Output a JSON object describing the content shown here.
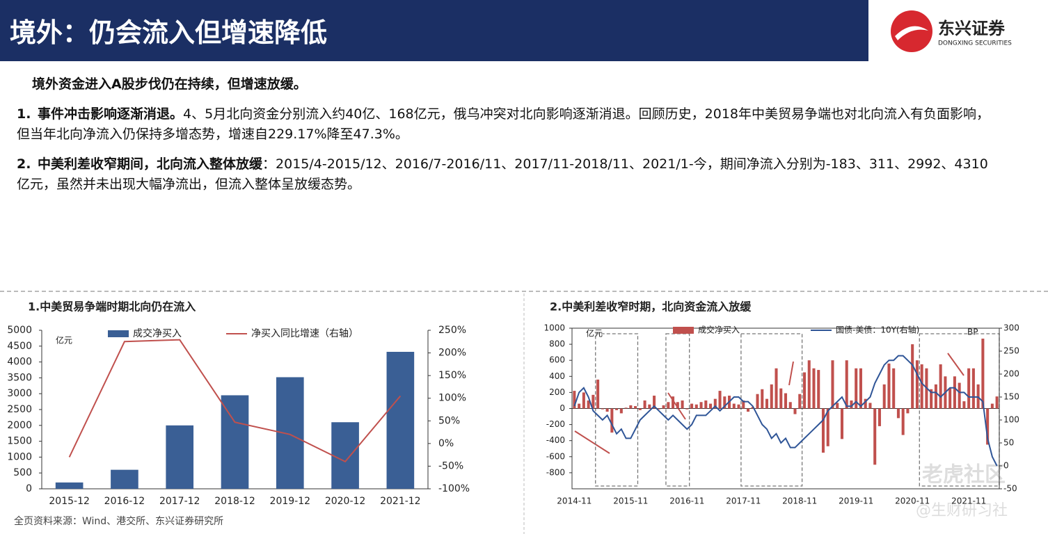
{
  "header": {
    "title": "境外：仍会流入但增速降低",
    "logo_cn": "东兴证券",
    "logo_en": "DONGXING SECURITIES"
  },
  "body": {
    "intro": "境外资金进入A股步伐仍在持续，但增速放缓。",
    "points": [
      {
        "number": "1.",
        "lead": "事件冲击影响逐渐消退。",
        "text": "4、5月北向资金分别流入约40亿、168亿元，俄乌冲突对北向影响逐渐消退。回顾历史，2018年中美贸易争端也对北向流入有负面影响，但当年北向净流入仍保持多增态势，增速自229.17%降至47.3%。"
      },
      {
        "number": "2.",
        "lead": "中美利差收窄期间，北向流入整体放缓",
        "text": "：2015/4-2015/12、2016/7-2016/11、2017/11-2018/11、2021/1-今，期间净流入分别为-183、311、2992、4310亿元，虽然并未出现大幅净流出，但流入整体呈放缓态势。"
      }
    ]
  },
  "source": "全页资料来源：Wind、港交所、东兴证券研究所",
  "watermark": [
    "老虎社区",
    "@生财研习社"
  ],
  "chart_data": [
    {
      "type": "bar",
      "title": "1.中美贸易争端时期北向仍在流入",
      "y_unit": "亿元",
      "categories": [
        "2015-12",
        "2016-12",
        "2017-12",
        "2018-12",
        "2019-12",
        "2020-12",
        "2021-12"
      ],
      "series": [
        {
          "name": "成交净买入",
          "color": "#3a5f95",
          "values": [
            200,
            600,
            2000,
            2950,
            3520,
            2100,
            4320
          ]
        },
        {
          "name": "净买入同比增速（右轴）",
          "color": "#c0504d",
          "type": "line",
          "axis": "y2",
          "values": [
            -30,
            225,
            229,
            47,
            20,
            -40,
            105
          ]
        }
      ],
      "ylim": [
        0,
        5000
      ],
      "yticks": [
        0,
        500,
        1000,
        1500,
        2000,
        2500,
        3000,
        3500,
        4000,
        4500,
        5000
      ],
      "y2lim": [
        -100,
        250
      ],
      "y2ticks": [
        {
          "value": -100,
          "label": "-100%"
        },
        {
          "value": -50,
          "label": "-50%"
        },
        {
          "value": 0,
          "label": "0%"
        },
        {
          "value": 50,
          "label": "50%"
        },
        {
          "value": 100,
          "label": "100%"
        },
        {
          "value": 150,
          "label": "150%"
        },
        {
          "value": 200,
          "label": "200%"
        },
        {
          "value": 250,
          "label": "250%"
        }
      ]
    },
    {
      "type": "bar",
      "title": "2.中美利差收窄时期，北向资金流入放缓",
      "y_unit": "亿元",
      "y2_unit": "BP",
      "categories": [
        "2014-11",
        null,
        null,
        null,
        null,
        null,
        null,
        null,
        null,
        null,
        null,
        null,
        "2015-11",
        null,
        null,
        null,
        null,
        null,
        null,
        null,
        null,
        null,
        null,
        null,
        "2016-11",
        null,
        null,
        null,
        null,
        null,
        null,
        null,
        null,
        null,
        null,
        null,
        "2017-11",
        null,
        null,
        null,
        null,
        null,
        null,
        null,
        null,
        null,
        null,
        null,
        "2018-11",
        null,
        null,
        null,
        null,
        null,
        null,
        null,
        null,
        null,
        null,
        null,
        "2019-11",
        null,
        null,
        null,
        null,
        null,
        null,
        null,
        null,
        null,
        null,
        null,
        "2020-11",
        null,
        null,
        null,
        null,
        null,
        null,
        null,
        null,
        null,
        null,
        null,
        "2021-11",
        null,
        null,
        null,
        null,
        null,
        null
      ],
      "series": [
        {
          "name": "成交净买入",
          "color": "#c0504d",
          "values": [
            220,
            60,
            200,
            100,
            170,
            360,
            -10,
            -40,
            -300,
            -20,
            -60,
            10,
            40,
            30,
            -20,
            100,
            50,
            160,
            -10,
            40,
            80,
            150,
            80,
            100,
            -10,
            60,
            50,
            80,
            100,
            60,
            120,
            220,
            150,
            160,
            60,
            50,
            100,
            -40,
            20,
            180,
            240,
            120,
            300,
            500,
            250,
            190,
            80,
            -70,
            180,
            450,
            600,
            500,
            480,
            -550,
            -470,
            600,
            70,
            -380,
            600,
            100,
            500,
            500,
            120,
            70,
            -700,
            -220,
            300,
            560,
            500,
            -120,
            -330,
            -60,
            800,
            600,
            550,
            500,
            240,
            300,
            550,
            400,
            250,
            400,
            320,
            90,
            500,
            500,
            300,
            870,
            -450,
            60,
            150
          ]
        },
        {
          "name": "国债-美债：10Y(右轴)",
          "color": "#2f5597",
          "type": "line",
          "axis": "y2",
          "values": [
            130,
            160,
            170,
            150,
            120,
            110,
            100,
            110,
            90,
            70,
            80,
            60,
            60,
            80,
            100,
            110,
            120,
            130,
            120,
            110,
            100,
            110,
            100,
            90,
            80,
            90,
            110,
            110,
            110,
            120,
            130,
            120,
            130,
            140,
            150,
            150,
            140,
            140,
            130,
            110,
            90,
            80,
            60,
            70,
            50,
            60,
            40,
            40,
            50,
            60,
            70,
            80,
            90,
            100,
            120,
            130,
            140,
            150,
            130,
            130,
            140,
            130,
            140,
            150,
            180,
            200,
            220,
            230,
            230,
            240,
            240,
            230,
            220,
            200,
            180,
            170,
            160,
            160,
            150,
            160,
            170,
            170,
            160,
            160,
            150,
            150,
            150,
            140,
            60,
            20,
            0
          ]
        }
      ],
      "highlights": [
        [
          5,
          13
        ],
        [
          20,
          24
        ],
        [
          36,
          48
        ],
        [
          74,
          90
        ]
      ],
      "ylim": [
        -1000,
        1000
      ],
      "yticks": [
        -800,
        -600,
        -400,
        -200,
        0,
        200,
        400,
        600,
        800,
        1000
      ],
      "y2lim": [
        -50,
        300
      ],
      "y2ticks": [
        -50,
        0,
        50,
        100,
        150,
        200,
        250,
        300
      ]
    }
  ]
}
